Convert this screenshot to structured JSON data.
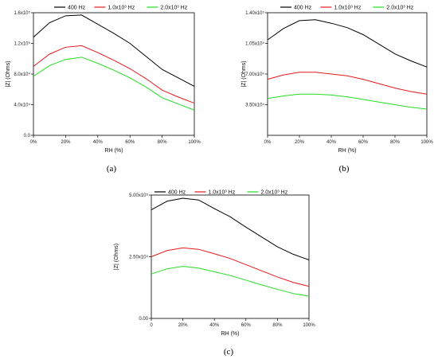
{
  "chart_data": [
    {
      "type": "line",
      "panel_label": "(a)",
      "xlabel": "RH (%)",
      "ylabel": "|Z| (Ohms)",
      "x": [
        0,
        10,
        20,
        30,
        40,
        50,
        60,
        70,
        80,
        90,
        100
      ],
      "x_ticks": [
        "0%",
        "20%",
        "40%",
        "60%",
        "80%",
        "100%"
      ],
      "x_tick_values": [
        0,
        20,
        40,
        60,
        80,
        100
      ],
      "y_ticks": [
        "0.0",
        "4.0x10⁴",
        "8.0x10⁴",
        "1.2x10⁵",
        "1.6x10⁵"
      ],
      "y_tick_values": [
        0,
        40000,
        80000,
        120000,
        160000
      ],
      "ylim": [
        0,
        160000
      ],
      "xlim": [
        0,
        100
      ],
      "legend_position": "top",
      "series": [
        {
          "name": "400 Hz",
          "color": "#000000",
          "values": [
            128000,
            147000,
            156000,
            157000,
            145000,
            133000,
            120000,
            103000,
            86000,
            75000,
            64000
          ]
        },
        {
          "name": "1.0x10³ Hz",
          "color": "#e41a1c",
          "values": [
            90000,
            106000,
            115000,
            117000,
            108000,
            98000,
            87000,
            74000,
            59000,
            50000,
            42000
          ]
        },
        {
          "name": "2.0x10³ Hz",
          "color": "#22dd22",
          "values": [
            77000,
            91000,
            99000,
            102000,
            94000,
            85000,
            75000,
            63000,
            49000,
            41000,
            33000
          ]
        }
      ]
    },
    {
      "type": "line",
      "panel_label": "(b)",
      "xlabel": "RH (%)",
      "ylabel": "|Z| (Ohms)",
      "x": [
        0,
        10,
        20,
        30,
        40,
        50,
        60,
        70,
        80,
        90,
        100
      ],
      "x_ticks": [
        "0%",
        "20%",
        "40%",
        "60%",
        "80%",
        "100%"
      ],
      "x_tick_values": [
        0,
        20,
        40,
        60,
        80,
        100
      ],
      "y_ticks": [
        "3.50x10⁴",
        "7.00x10⁴",
        "1.05x10⁵",
        "1.40x10⁵"
      ],
      "y_tick_values": [
        35000,
        70000,
        105000,
        140000
      ],
      "ylim": [
        0,
        140000
      ],
      "xlim": [
        0,
        100
      ],
      "legend_position": "top",
      "series": [
        {
          "name": "400 Hz",
          "color": "#000000",
          "values": [
            109000,
            122000,
            131000,
            132000,
            128000,
            123000,
            115000,
            104000,
            93000,
            85000,
            78000
          ]
        },
        {
          "name": "1.0x10³ Hz",
          "color": "#e41a1c",
          "values": [
            64000,
            69000,
            72000,
            72000,
            70000,
            68000,
            64000,
            59000,
            54000,
            50000,
            47000
          ]
        },
        {
          "name": "2.0x10³ Hz",
          "color": "#22dd22",
          "values": [
            42000,
            45000,
            47000,
            47000,
            46000,
            44000,
            41000,
            38000,
            35000,
            32000,
            30000
          ]
        }
      ]
    },
    {
      "type": "line",
      "panel_label": "(c)",
      "xlabel": "RH (%)",
      "ylabel": "|Z| (Ohms)",
      "x": [
        0,
        10,
        20,
        30,
        40,
        50,
        60,
        70,
        80,
        90,
        100
      ],
      "x_ticks": [
        "0",
        "20%",
        "40%",
        "60%",
        "80%",
        "100%"
      ],
      "x_tick_values": [
        0,
        20,
        40,
        60,
        80,
        100
      ],
      "y_ticks": [
        "0.00",
        "2.50x10⁵",
        "5.00x10⁵"
      ],
      "y_tick_values": [
        0,
        250000,
        500000
      ],
      "ylim": [
        0,
        500000
      ],
      "xlim": [
        0,
        100
      ],
      "legend_position": "top",
      "series": [
        {
          "name": "400 Hz",
          "color": "#000000",
          "values": [
            440000,
            475000,
            487000,
            480000,
            445000,
            412000,
            370000,
            330000,
            290000,
            260000,
            237000
          ]
        },
        {
          "name": "1.0x10³ Hz",
          "color": "#e41a1c",
          "values": [
            250000,
            275000,
            286000,
            280000,
            262000,
            243000,
            218000,
            193000,
            168000,
            146000,
            130000
          ]
        },
        {
          "name": "2.0x10³ Hz",
          "color": "#22dd22",
          "values": [
            180000,
            201000,
            211000,
            204000,
            189000,
            174000,
            155000,
            136000,
            118000,
            101000,
            90000
          ]
        }
      ]
    }
  ]
}
